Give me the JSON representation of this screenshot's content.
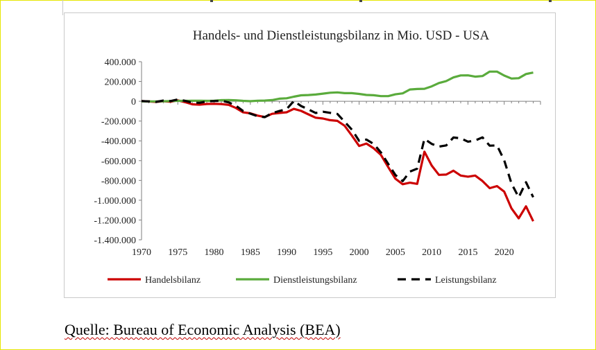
{
  "caption": "Quelle: Bureau of Economic Analysis (BEA)",
  "chart_data": {
    "type": "line",
    "title": "Handels- und Dienstleistungsbilanz in Mio. USD - USA",
    "xlabel": "",
    "ylabel": "",
    "xlim": [
      1970,
      2025
    ],
    "ylim": [
      -1400000,
      400000
    ],
    "x_ticks": [
      "1970",
      "1975",
      "1980",
      "1985",
      "1990",
      "1995",
      "2000",
      "2005",
      "2010",
      "2015",
      "2020"
    ],
    "y_ticks": [
      "400.000",
      "200.000",
      "0",
      "-200.000",
      "-400.000",
      "-600.000",
      "-800.000",
      "-1.000.000",
      "-1.200.000",
      "-1.400.000"
    ],
    "grid": false,
    "legend_position": "bottom",
    "x": [
      1970,
      1971,
      1972,
      1973,
      1974,
      1975,
      1976,
      1977,
      1978,
      1979,
      1980,
      1981,
      1982,
      1983,
      1984,
      1985,
      1986,
      1987,
      1988,
      1989,
      1990,
      1991,
      1992,
      1993,
      1994,
      1995,
      1996,
      1997,
      1998,
      1999,
      2000,
      2001,
      2002,
      2003,
      2004,
      2005,
      2006,
      2007,
      2008,
      2009,
      2010,
      2011,
      2012,
      2013,
      2014,
      2015,
      2016,
      2017,
      2018,
      2019,
      2020,
      2021,
      2022,
      2023,
      2024
    ],
    "series": [
      {
        "name": "Handelsbilanz",
        "color": "#cc0000",
        "dash": "solid",
        "values": [
          2000,
          -2000,
          -6000,
          1000,
          -5000,
          9000,
          -9000,
          -31000,
          -34000,
          -27000,
          -26000,
          -28000,
          -36000,
          -67000,
          -112000,
          -122000,
          -145000,
          -159000,
          -127000,
          -118000,
          -111000,
          -77000,
          -97000,
          -132000,
          -166000,
          -174000,
          -191000,
          -198000,
          -247000,
          -347000,
          -452000,
          -427000,
          -475000,
          -542000,
          -665000,
          -783000,
          -838000,
          -823000,
          -835000,
          -510000,
          -650000,
          -744000,
          -741000,
          -702000,
          -751000,
          -762000,
          -751000,
          -806000,
          -878000,
          -857000,
          -913000,
          -1083000,
          -1183000,
          -1062000,
          -1212000
        ]
      },
      {
        "name": "Dienstleistungsbilanz",
        "color": "#5aab3c",
        "dash": "solid",
        "values": [
          -1000,
          -1000,
          -1000,
          0,
          2000,
          4000,
          4000,
          5000,
          5000,
          4000,
          6000,
          11000,
          12000,
          10000,
          4000,
          1000,
          6000,
          7000,
          12000,
          26000,
          30000,
          46000,
          60000,
          63000,
          68000,
          77000,
          86000,
          90000,
          82000,
          82000,
          74000,
          64000,
          61000,
          52000,
          52000,
          70000,
          80000,
          119000,
          124000,
          126000,
          151000,
          184000,
          204000,
          241000,
          261000,
          262000,
          249000,
          255000,
          300000,
          300000,
          260000,
          230000,
          233000,
          275000,
          290000
        ]
      },
      {
        "name": "Leistungsbilanz",
        "color": "#000000",
        "dash": "dashed",
        "values": [
          2000,
          -1000,
          -6000,
          7000,
          2000,
          18000,
          4000,
          -14000,
          -15000,
          -1000,
          2000,
          5000,
          -11000,
          -44000,
          -99000,
          -125000,
          -151000,
          -160000,
          -120000,
          -99000,
          -79000,
          3000,
          -48000,
          -82000,
          -118000,
          -106000,
          -117000,
          -128000,
          -207000,
          -287000,
          -400000,
          -387000,
          -431000,
          -517000,
          -633000,
          -745000,
          -807000,
          -711000,
          -681000,
          -380000,
          -431000,
          -458000,
          -446000,
          -366000,
          -374000,
          -408000,
          -396000,
          -365000,
          -449000,
          -446000,
          -597000,
          -831000,
          -971000,
          -818000,
          -970000
        ]
      }
    ]
  }
}
